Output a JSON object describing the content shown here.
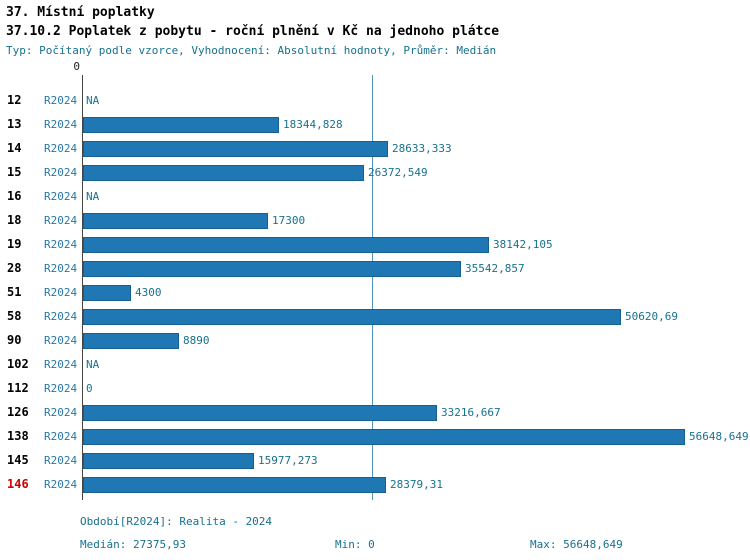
{
  "title": "37. Místní poplatky",
  "subtitle": "37.10.2 Poplatek z pobytu - roční plnění v Kč na jednoho plátce",
  "meta": "Typ: Počítaný podle vzorce, Vyhodnocení: Absolutní hodnoty, Průměr: Medián",
  "axis_zero_label": "0",
  "chart_data": {
    "type": "bar",
    "orientation": "horizontal",
    "title": "37.10.2 Poplatek z pobytu - roční plnění v Kč na jednoho plátce",
    "xlabel": "",
    "ylabel": "",
    "xlim": [
      0,
      56648.649
    ],
    "median": 27375.93,
    "grid": false,
    "series_name": "R2024",
    "rows": [
      {
        "id": "12",
        "period": "R2024",
        "value": null,
        "label": "NA"
      },
      {
        "id": "13",
        "period": "R2024",
        "value": 18344.828,
        "label": "18344,828"
      },
      {
        "id": "14",
        "period": "R2024",
        "value": 28633.333,
        "label": "28633,333"
      },
      {
        "id": "15",
        "period": "R2024",
        "value": 26372.549,
        "label": "26372,549"
      },
      {
        "id": "16",
        "period": "R2024",
        "value": null,
        "label": "NA"
      },
      {
        "id": "18",
        "period": "R2024",
        "value": 17300,
        "label": "17300"
      },
      {
        "id": "19",
        "period": "R2024",
        "value": 38142.105,
        "label": "38142,105"
      },
      {
        "id": "28",
        "period": "R2024",
        "value": 35542.857,
        "label": "35542,857"
      },
      {
        "id": "51",
        "period": "R2024",
        "value": 4300,
        "label": "4300"
      },
      {
        "id": "58",
        "period": "R2024",
        "value": 50620.69,
        "label": "50620,69"
      },
      {
        "id": "90",
        "period": "R2024",
        "value": 8890,
        "label": "8890"
      },
      {
        "id": "102",
        "period": "R2024",
        "value": null,
        "label": "NA"
      },
      {
        "id": "112",
        "period": "R2024",
        "value": 0,
        "label": "0"
      },
      {
        "id": "126",
        "period": "R2024",
        "value": 33216.667,
        "label": "33216,667"
      },
      {
        "id": "138",
        "period": "R2024",
        "value": 56648.649,
        "label": "56648,649"
      },
      {
        "id": "145",
        "period": "R2024",
        "value": 15977.273,
        "label": "15977,273"
      },
      {
        "id": "146",
        "period": "R2024",
        "value": 28379.31,
        "label": "28379,31",
        "highlight": true
      }
    ]
  },
  "footer": {
    "period_label": "Období[R2024]: Realita - 2024",
    "median_label": "Medián: 27375,93",
    "min_label": "Min: 0",
    "max_label": "Max: 56648,649"
  },
  "colors": {
    "bar": "#1f77b4",
    "bar_border": "#14608f",
    "accent_text": "#17718e",
    "period_text": "#2479a8",
    "median_line": "#4f93b8",
    "highlight": "#d00000"
  }
}
